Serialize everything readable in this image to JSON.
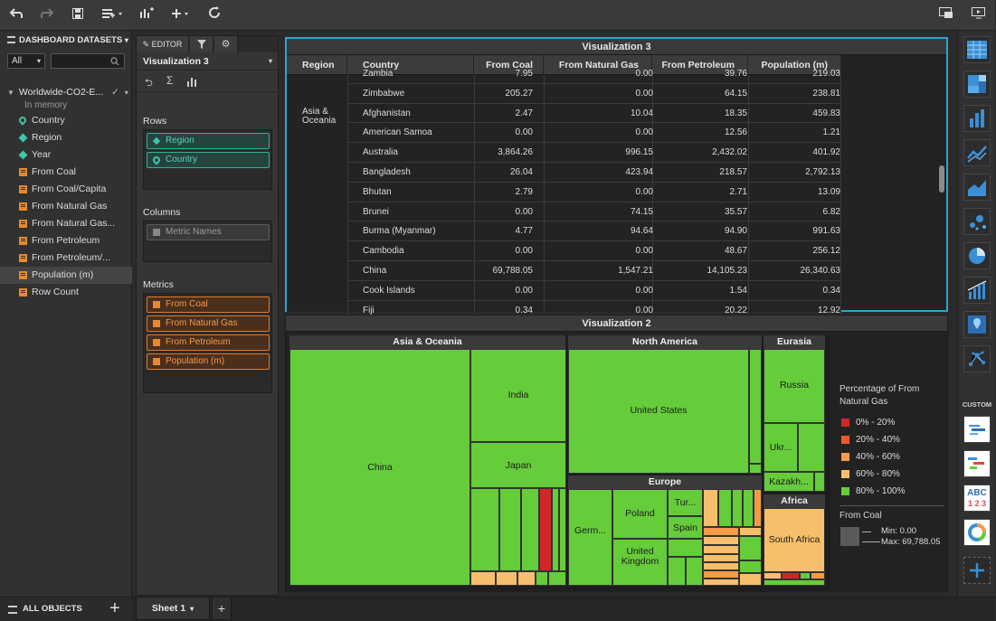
{
  "toolbar": {
    "icons": [
      "undo-icon",
      "redo-icon",
      "save-icon",
      "add-data-icon",
      "insert-visualization-icon",
      "add-icon",
      "refresh-icon",
      "presentation-mode-icon",
      "present-icon"
    ]
  },
  "datasets": {
    "header": "DASHBOARD DATASETS",
    "filter_value": "All",
    "dataset_name": "Worldwide-CO2-E...",
    "dataset_status": "In memory",
    "fields": [
      {
        "label": "Country",
        "kind": "geo"
      },
      {
        "label": "Region",
        "kind": "attribute"
      },
      {
        "label": "Year",
        "kind": "attribute"
      },
      {
        "label": "From Coal",
        "kind": "metric"
      },
      {
        "label": "From Coal/Capita",
        "kind": "metric"
      },
      {
        "label": "From Natural Gas",
        "kind": "metric"
      },
      {
        "label": "From Natural Gas...",
        "kind": "metric"
      },
      {
        "label": "From Petroleum",
        "kind": "metric"
      },
      {
        "label": "From Petroleum/...",
        "kind": "metric"
      },
      {
        "label": "Population (m)",
        "kind": "metric"
      },
      {
        "label": "Row Count",
        "kind": "metric"
      }
    ],
    "selected_field": "Population (m)",
    "footer_label": "ALL OBJECTS"
  },
  "editor": {
    "tab_label": "EDITOR",
    "viz_name": "Visualization 3",
    "rows_label": "Rows",
    "rows": [
      "Region",
      "Country"
    ],
    "columns_label": "Columns",
    "columns": [
      "Metric Names"
    ],
    "metrics_label": "Metrics",
    "metrics": [
      "From Coal",
      "From Natural Gas",
      "From Petroleum",
      "Population (m)"
    ]
  },
  "viz3": {
    "title": "Visualization 3",
    "headers": [
      "Region",
      "Country",
      "From Coal",
      "From Natural Gas",
      "From Petroleum",
      "Population (m)"
    ],
    "rows": [
      {
        "country": "Zambia",
        "coal": "7.95",
        "gas": "0.00",
        "petro": "39.76",
        "pop": "219.03"
      },
      {
        "country": "Zimbabwe",
        "coal": "205.27",
        "gas": "0.00",
        "petro": "64.15",
        "pop": "238.81"
      },
      {
        "country": "Afghanistan",
        "coal": "2.47",
        "gas": "10.04",
        "petro": "18.35",
        "pop": "459.83"
      },
      {
        "country": "American Samoa",
        "coal": "0.00",
        "gas": "0.00",
        "petro": "12.56",
        "pop": "1.21"
      },
      {
        "country": "Australia",
        "coal": "3,864.26",
        "gas": "996.15",
        "petro": "2,432.02",
        "pop": "401.92"
      },
      {
        "country": "Bangladesh",
        "coal": "26.04",
        "gas": "423.94",
        "petro": "218.57",
        "pop": "2,792.13"
      },
      {
        "country": "Bhutan",
        "coal": "2.79",
        "gas": "0.00",
        "petro": "2.71",
        "pop": "13.09"
      },
      {
        "country": "Brunei",
        "coal": "0.00",
        "gas": "74.15",
        "petro": "35.57",
        "pop": "6.82"
      },
      {
        "country": "Burma (Myanmar)",
        "coal": "4.77",
        "gas": "94.64",
        "petro": "94.90",
        "pop": "991.63"
      },
      {
        "country": "Cambodia",
        "coal": "0.00",
        "gas": "0.00",
        "petro": "48.67",
        "pop": "256.12"
      },
      {
        "country": "China",
        "coal": "69,788.05",
        "gas": "1,547.21",
        "petro": "14,105.23",
        "pop": "26,340.63"
      },
      {
        "country": "Cook Islands",
        "coal": "0.00",
        "gas": "0.00",
        "petro": "1.54",
        "pop": "0.34"
      },
      {
        "country": "Fiji",
        "coal": "0.34",
        "gas": "0.00",
        "petro": "20.22",
        "pop": "12.92"
      }
    ],
    "region_label": "Asia & Oceania"
  },
  "viz2": {
    "title": "Visualization 2",
    "groups": {
      "asia": "Asia & Oceania",
      "namerica": "North America",
      "eurasia": "Eurasia",
      "europe": "Europe",
      "africa": "Africa"
    },
    "tiles": {
      "china": "China",
      "india": "India",
      "japan": "Japan",
      "us": "United States",
      "russia": "Russia",
      "ukr": "Ukr...",
      "kazakh": "Kazakh...",
      "poland": "Poland",
      "turkey": "Tur...",
      "spain": "Spain",
      "germany": "Germ...",
      "uk": "United Kingdom",
      "south_africa": "South Africa"
    },
    "legend": {
      "color_title": "Percentage of From Natural Gas",
      "bins": [
        {
          "label": "0% - 20%",
          "color": "#d0262a"
        },
        {
          "label": "20% - 40%",
          "color": "#ef5a2a"
        },
        {
          "label": "40% - 60%",
          "color": "#f59a45"
        },
        {
          "label": "60% - 80%",
          "color": "#f7bf6b"
        },
        {
          "label": "80% - 100%",
          "color": "#65cc3a"
        }
      ],
      "size_title": "From Coal",
      "min_label": "Min: 0.00",
      "max_label": "Max: 69,788.05"
    }
  },
  "gallery": {
    "custom_label": "CUSTOM",
    "abc_label": "ABC",
    "num_label": "1 2 3"
  },
  "sheets": {
    "tab": "Sheet 1"
  },
  "colors": {
    "accent": "#2aa4d6",
    "green": "#65cc3a",
    "red": "#d0262a",
    "orange": "#f59a45",
    "light_orange": "#f7bf6b"
  }
}
